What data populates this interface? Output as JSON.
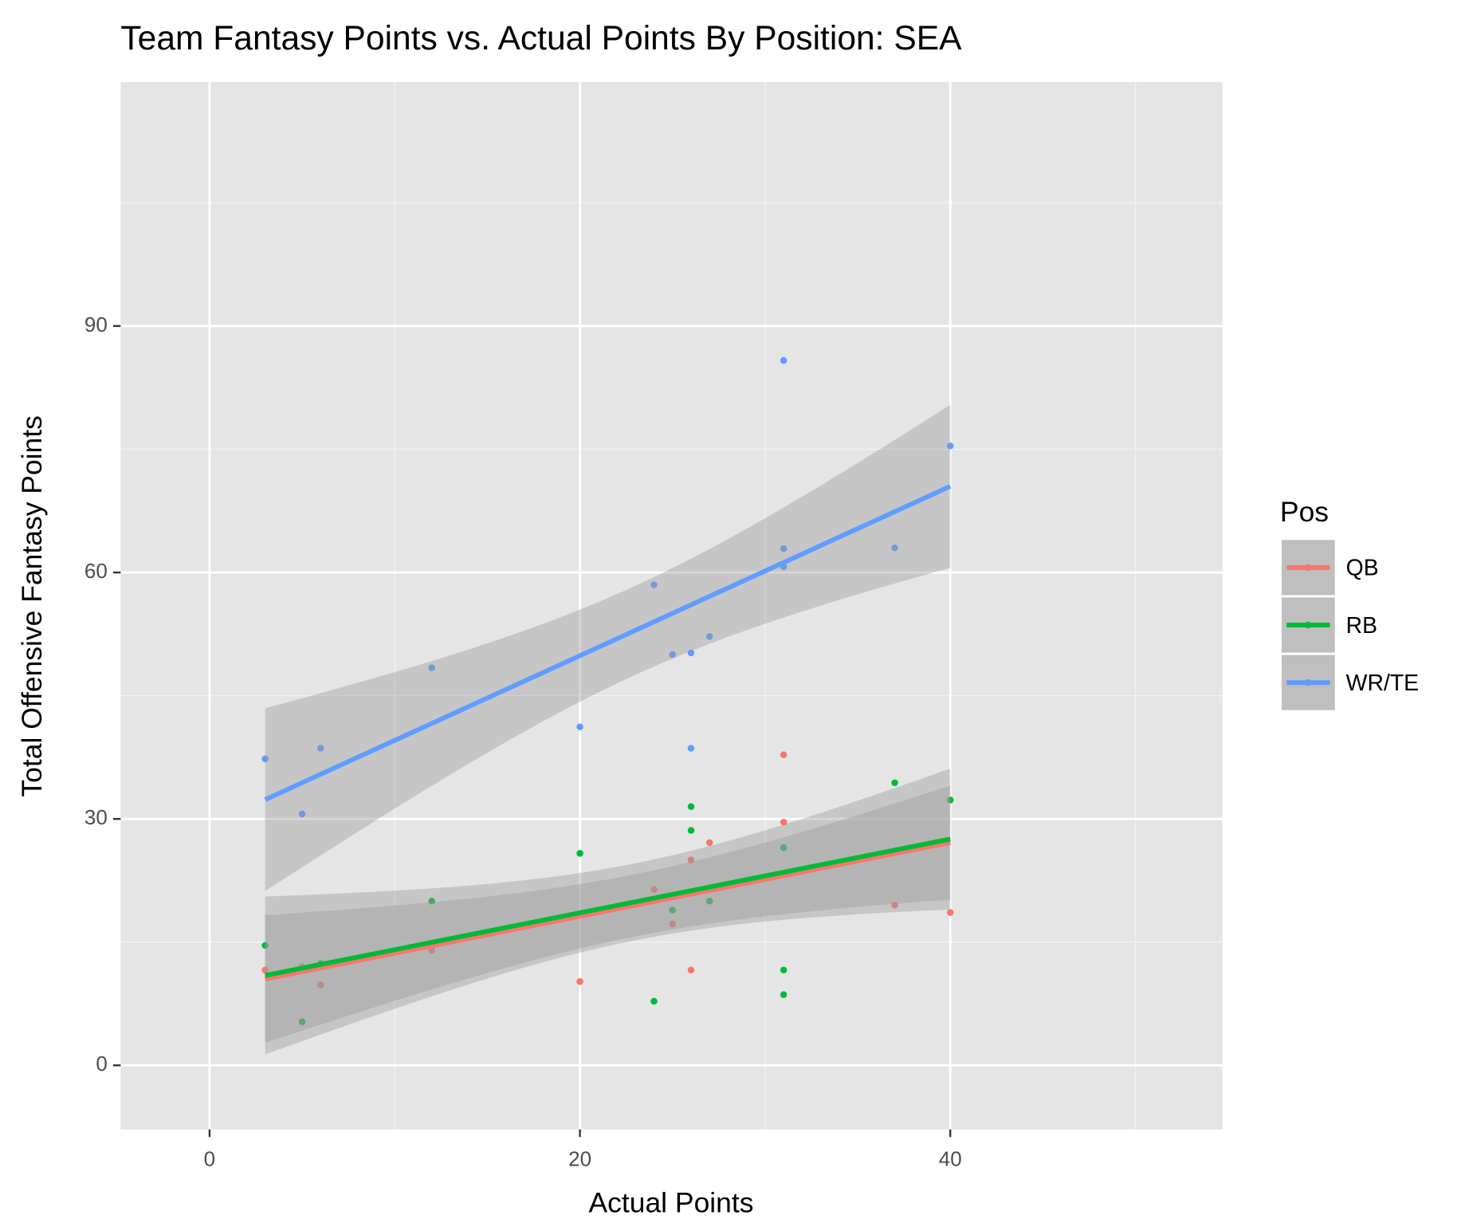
{
  "chart_data": {
    "type": "scatter",
    "title": "Team Fantasy Points vs. Actual Points By Position: SEA",
    "x_label": "Actual Points",
    "y_label": "Total Offensive Fantasy Points",
    "legend_title": "Pos",
    "legend_position": "right",
    "smooth": "lm",
    "level": 0.95,
    "grid": true,
    "xlim": [
      -4.8,
      54.7
    ],
    "xticks": [
      0,
      20,
      40
    ],
    "ylim": [
      -7.8,
      119.7
    ],
    "yticks": [
      0,
      30,
      60,
      90
    ],
    "series": [
      {
        "name": "QB",
        "color": "#F8766D",
        "x": [
          3,
          5,
          6,
          12,
          20,
          24,
          25,
          26,
          26,
          27,
          31,
          31,
          31,
          37,
          40
        ],
        "values": [
          11.6,
          12,
          9.8,
          14,
          10.2,
          21.4,
          17.2,
          11.6,
          25,
          27.1,
          37.8,
          29.6,
          26.5,
          19.5,
          18.6
        ]
      },
      {
        "name": "RB",
        "color": "#00BA38",
        "x": [
          3,
          5,
          6,
          12,
          20,
          24,
          25,
          26,
          26,
          27,
          31,
          31,
          31,
          37,
          40
        ],
        "values": [
          14.6,
          5.3,
          12.4,
          20,
          25.8,
          7.8,
          18.9,
          31.5,
          28.6,
          20,
          11.6,
          8.6,
          26.5,
          34.4,
          32.3
        ]
      },
      {
        "name": "WR/TE",
        "color": "#619CFF",
        "x": [
          3,
          5,
          6,
          12,
          20,
          24,
          25,
          26,
          26,
          27,
          31,
          31,
          31,
          37,
          40
        ],
        "values": [
          37.3,
          30.6,
          38.6,
          48.4,
          41.2,
          58.5,
          50,
          50.2,
          38.6,
          52.2,
          85.8,
          62.9,
          60.7,
          63,
          75.4
        ]
      }
    ]
  }
}
